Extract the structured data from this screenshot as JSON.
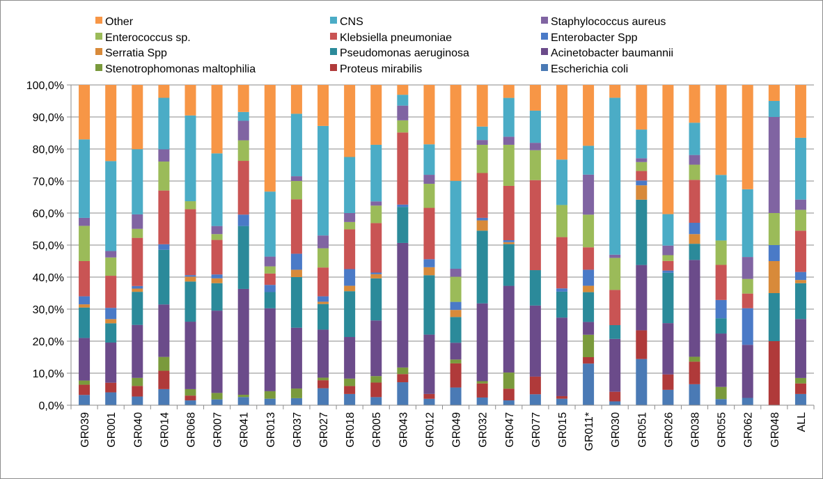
{
  "chart_data": {
    "type": "bar",
    "stacked": true,
    "percent": true,
    "title": "",
    "xlabel": "",
    "ylabel": "",
    "ylim": [
      0,
      100
    ],
    "yticks": [
      "0,0%",
      "10,0%",
      "20,0%",
      "30,0%",
      "40,0%",
      "50,0%",
      "60,0%",
      "70,0%",
      "80,0%",
      "90,0%",
      "100,0%"
    ],
    "grid": true,
    "legend_placement": "top",
    "categories": [
      "GR039",
      "GR001",
      "GR040",
      "GR014",
      "GR068",
      "GR007",
      "GR041",
      "GR013",
      "GR037",
      "GR027",
      "GR018",
      "GR005",
      "GR043",
      "GR012",
      "GR049",
      "GR032",
      "GR047",
      "GR077",
      "GR015",
      "GR011*",
      "GR030",
      "GR051",
      "GR026",
      "GR038",
      "GR055",
      "GR062",
      "GR048",
      "ALL"
    ],
    "series": [
      {
        "name": "Escherichia coli",
        "color": "#4a7ab5",
        "values": [
          3.2,
          4,
          2.7,
          5,
          1.5,
          1.8,
          2.5,
          2,
          2.2,
          5.3,
          3.5,
          2.5,
          7,
          2,
          5.5,
          2.4,
          1.5,
          3.4,
          2,
          13,
          1.2,
          14.5,
          4.8,
          6.5,
          2,
          2,
          0,
          3.5
        ]
      },
      {
        "name": "Proteus mirabilis",
        "color": "#b03a3a",
        "values": [
          3.2,
          3,
          3.3,
          5.7,
          1.5,
          0,
          0,
          0,
          0,
          2.5,
          2.5,
          4.5,
          2.5,
          1.5,
          7.5,
          4.4,
          3.6,
          5.5,
          0.8,
          2,
          3,
          9,
          4.8,
          7,
          0,
          0,
          20,
          3.3
        ]
      },
      {
        "name": "Stenotrophomonas maltophilia",
        "color": "#7a9a3c",
        "values": [
          1.3,
          0,
          2.5,
          4.3,
          2,
          2,
          0.7,
          2.3,
          3,
          0.8,
          2.3,
          2,
          2,
          0,
          1.2,
          0.7,
          5,
          0,
          0,
          7,
          0,
          0,
          0,
          1.5,
          4,
          0,
          0,
          1.7
        ]
      },
      {
        "name": "Acinetobacter baumannii",
        "color": "#6b4b8a",
        "values": [
          13.3,
          12.5,
          16.5,
          16.3,
          21,
          25.5,
          32.5,
          25.5,
          19,
          15,
          13,
          17.2,
          38,
          18.5,
          5.2,
          24.3,
          26.8,
          22.1,
          24.2,
          4,
          16.5,
          20.5,
          16,
          30,
          17.5,
          14.5,
          0,
          18.4
        ]
      },
      {
        "name": "Pseudomonas aeruginosa",
        "color": "#2b8a9a",
        "values": [
          9.5,
          6,
          10.3,
          17,
          12.5,
          8.5,
          19.3,
          5,
          15.8,
          8,
          14.3,
          13,
          11,
          18.5,
          8,
          22.7,
          12.9,
          11,
          8,
          9.3,
          4.3,
          20.5,
          15.7,
          5,
          5,
          0,
          15,
          11.2
        ]
      },
      {
        "name": "Serratia Spp",
        "color": "#d88a3a",
        "values": [
          1,
          1.3,
          1,
          0,
          1.5,
          1.5,
          0,
          0,
          2.3,
          0.7,
          1.7,
          1.3,
          0,
          2.5,
          2.2,
          3.2,
          0.6,
          0,
          0,
          2,
          0,
          4.5,
          0,
          3,
          0,
          0,
          10,
          1
        ]
      },
      {
        "name": "Enterobacter Spp",
        "color": "#4a7ac7",
        "values": [
          2.5,
          3.5,
          0.8,
          1.7,
          0.5,
          1.2,
          3.5,
          2.2,
          5,
          1.7,
          5.2,
          0.5,
          0.7,
          2.5,
          2.5,
          0.8,
          0.6,
          0,
          1,
          5,
          0,
          1.5,
          0.7,
          3.5,
          6,
          10,
          5,
          2.5
        ]
      },
      {
        "name": "Klebsiella pneumoniae",
        "color": "#c95454",
        "values": [
          11,
          10,
          15,
          16.7,
          20.5,
          10.7,
          16.5,
          3.5,
          17,
          9,
          12.4,
          15.3,
          22,
          16,
          0,
          14,
          16.8,
          28,
          15.8,
          7,
          11,
          3,
          3,
          13.3,
          11.5,
          4,
          0,
          12.9
        ]
      },
      {
        "name": "Enterococcus sp.",
        "color": "#9bbb59",
        "values": [
          11,
          5.7,
          2.8,
          9,
          2.5,
          1.8,
          6.3,
          2.2,
          5.7,
          6,
          2.3,
          5.4,
          3.7,
          7.5,
          7.8,
          8.8,
          12.7,
          9.3,
          9.9,
          10.2,
          10,
          2.8,
          1.8,
          4.7,
          8,
          4,
          10,
          6.5
        ]
      },
      {
        "name": "Staphylococcus aureus",
        "color": "#8064a2",
        "values": [
          2.5,
          2,
          4.5,
          3.8,
          0,
          2.5,
          6,
          3,
          1.5,
          4,
          2.8,
          1.3,
          4.5,
          2.8,
          2.5,
          1.5,
          2.5,
          2.3,
          0,
          12.5,
          1,
          1.2,
          3,
          3,
          0,
          6,
          30,
          3.2
        ]
      },
      {
        "name": "CNS",
        "color": "#4bacc6",
        "values": [
          24.5,
          28,
          20.3,
          16,
          26.7,
          22.5,
          2.7,
          20,
          19.5,
          34.2,
          17.5,
          17.5,
          3.3,
          9.5,
          27.3,
          4.2,
          12,
          10,
          14,
          9,
          49,
          9,
          9.8,
          10,
          21.5,
          18.5,
          5,
          19.3
        ]
      },
      {
        "name": "Other",
        "color": "#f79646",
        "values": [
          17,
          23.7,
          20,
          4,
          9.5,
          21.2,
          8.3,
          32.8,
          9,
          12.8,
          22.5,
          18.5,
          3,
          18.5,
          29.8,
          13,
          4,
          8,
          23,
          19,
          4,
          14,
          40.3,
          11.7,
          29.5,
          28.5,
          5,
          16.5
        ]
      }
    ],
    "legend_layout": [
      [
        "Other",
        "CNS",
        "Staphylococcus aureus"
      ],
      [
        "Enterococcus sp.",
        "Klebsiella pneumoniae",
        "Enterobacter Spp"
      ],
      [
        "Serratia Spp",
        "Pseudomonas aeruginosa",
        "Acinetobacter baumannii"
      ],
      [
        "Stenotrophomonas maltophilia",
        "Proteus mirabilis",
        "Escherichia coli"
      ]
    ]
  }
}
